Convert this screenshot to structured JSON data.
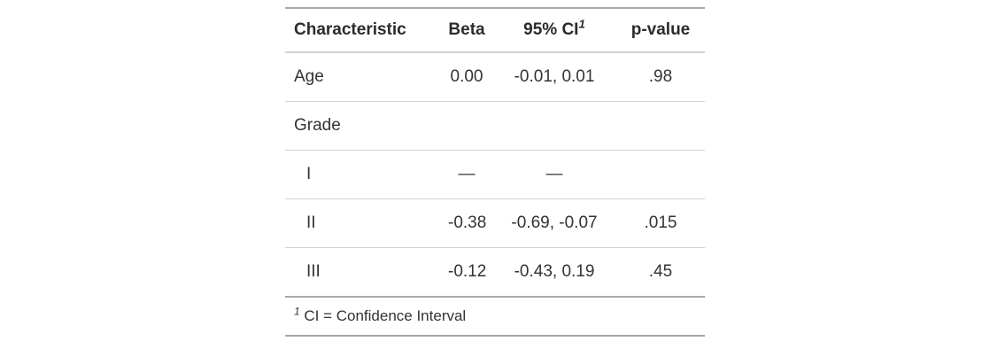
{
  "chart_data": {
    "type": "table",
    "columns": [
      {
        "label": "Characteristic",
        "align": "left"
      },
      {
        "label": "Beta",
        "align": "center"
      },
      {
        "label": "95% CI",
        "footnote_marker": "1",
        "align": "center"
      },
      {
        "label": "p-value",
        "align": "center"
      }
    ],
    "rows": [
      {
        "characteristic": "Age",
        "indent": false,
        "beta": "0.00",
        "ci_95": "-0.01, 0.01",
        "p_value": ".98"
      },
      {
        "characteristic": "Grade",
        "indent": false,
        "beta": "",
        "ci_95": "",
        "p_value": ""
      },
      {
        "characteristic": "I",
        "indent": true,
        "beta": "—",
        "ci_95": "—",
        "p_value": ""
      },
      {
        "characteristic": "II",
        "indent": true,
        "beta": "-0.38",
        "ci_95": "-0.69, -0.07",
        "p_value": ".015"
      },
      {
        "characteristic": "III",
        "indent": true,
        "beta": "-0.12",
        "ci_95": "-0.43, 0.19",
        "p_value": ".45"
      }
    ],
    "footnote": {
      "marker": "1",
      "text": "CI = Confidence Interval"
    }
  },
  "colors": {
    "background": "#FFFFFF",
    "text": "#333333",
    "header_text": "#2B2B2B",
    "border_dark": "#A8A8A8",
    "border_light": "#D3D3D3"
  }
}
